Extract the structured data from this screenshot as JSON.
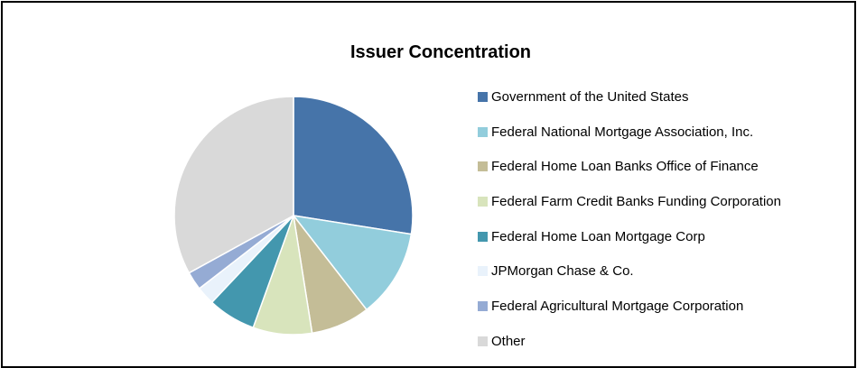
{
  "chart_data": {
    "type": "pie",
    "title": "Issuer Concentration",
    "legend_position": "right",
    "start_angle": "12 o'clock, clockwise",
    "series": [
      {
        "name": "",
        "values": [
          27.5,
          12.0,
          8.0,
          8.0,
          6.5,
          2.5,
          2.5,
          33.0
        ]
      }
    ],
    "categories": [
      "Government of the United States",
      "Federal National Mortgage Association, Inc.",
      "Federal Home Loan Banks Office of Finance",
      "Federal Farm Credit Banks Funding Corporation",
      "Federal Home Loan Mortgage Corp",
      "JPMorgan Chase & Co.",
      "Federal Agricultural Mortgage Corporation",
      "Other"
    ],
    "colors": [
      "#4674a9",
      "#92cddc",
      "#c4bd97",
      "#d8e4bc",
      "#4397ae",
      "#e9f2fb",
      "#95abd4",
      "#d9d9d9"
    ]
  }
}
